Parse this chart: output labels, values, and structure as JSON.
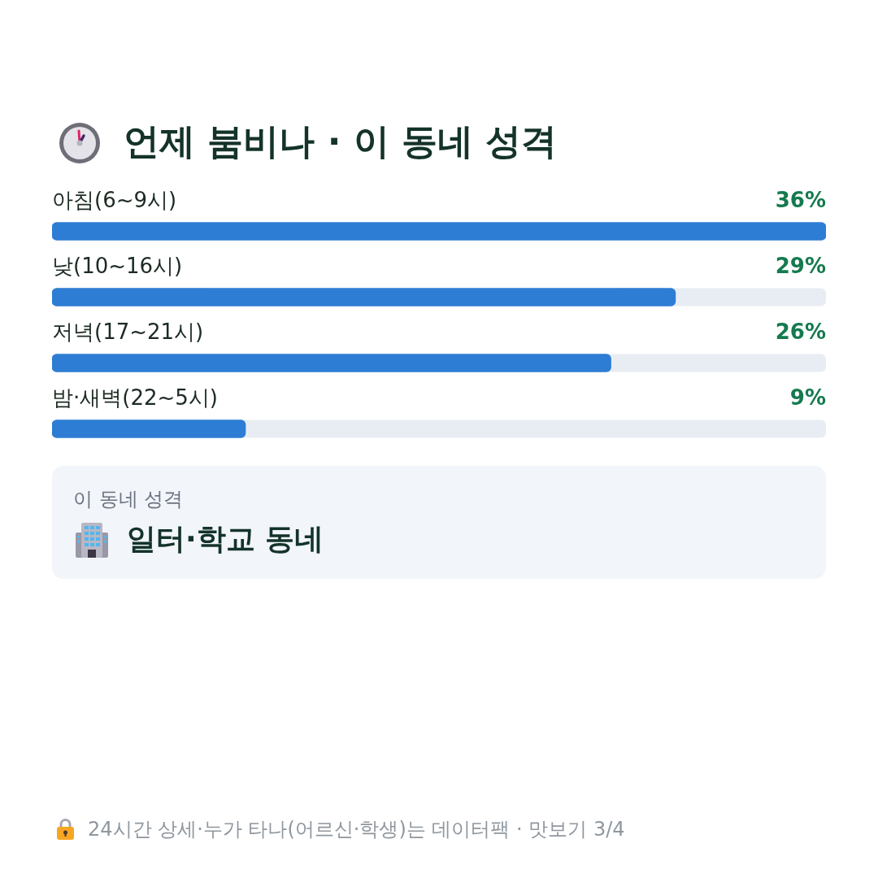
{
  "chart_data": {
    "type": "bar",
    "orientation": "horizontal",
    "title": "언제 붐비나 · 이 동네 성격",
    "categories": [
      "아침(6~9시)",
      "낮(10~16시)",
      "저녁(17~21시)",
      "밤·새벽(22~5시)"
    ],
    "values": [
      36,
      29,
      26,
      9
    ],
    "color": "#2e7dd4",
    "value_labels": [
      "36%",
      "29%",
      "26%",
      "9%"
    ],
    "xlim": [
      0,
      36
    ],
    "tick_labels": "y",
    "grid": false,
    "legend": false,
    "annotations": [
      "이 동네 성격",
      "일터·학교 동네",
      "24시간 상세·누가 타나(어르신·학생)는 데이터팩 · 맛보기 3/4"
    ]
  }
}
